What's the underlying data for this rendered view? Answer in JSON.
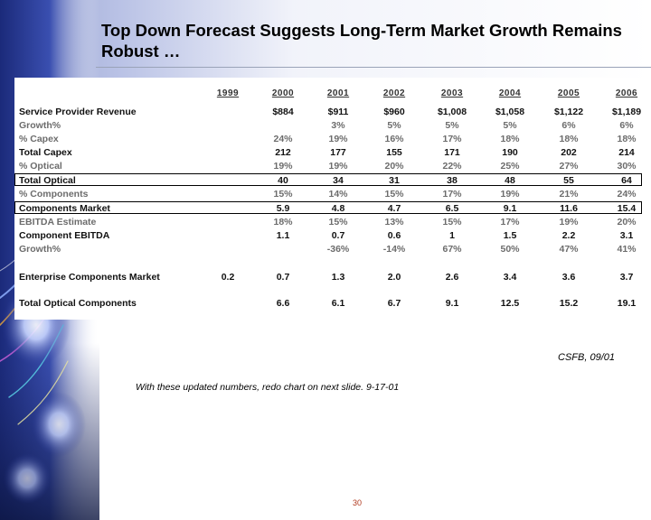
{
  "title": "Top Down Forecast Suggests Long-Term Market Growth Remains Robust …",
  "years": [
    "1999",
    "2000",
    "2001",
    "2002",
    "2003",
    "2004",
    "2005",
    "2006"
  ],
  "rows": [
    {
      "label": "Service Provider Revenue",
      "style": "bold",
      "values": [
        "",
        "$884",
        "$911",
        "$960",
        "$1,008",
        "$1,058",
        "$1,122",
        "$1,189"
      ]
    },
    {
      "label": "Growth%",
      "style": "light",
      "values": [
        "",
        "",
        "3%",
        "5%",
        "5%",
        "5%",
        "6%",
        "6%"
      ]
    },
    {
      "label": "% Capex",
      "style": "light",
      "values": [
        "",
        "24%",
        "19%",
        "16%",
        "17%",
        "18%",
        "18%",
        "18%"
      ]
    },
    {
      "label": "Total Capex",
      "style": "bold",
      "values": [
        "",
        "212",
        "177",
        "155",
        "171",
        "190",
        "202",
        "214"
      ]
    },
    {
      "label": "% Optical",
      "style": "light",
      "values": [
        "",
        "19%",
        "19%",
        "20%",
        "22%",
        "25%",
        "27%",
        "30%"
      ]
    },
    {
      "label": "Total Optical",
      "style": "bold",
      "values": [
        "",
        "40",
        "34",
        "31",
        "38",
        "48",
        "55",
        "64"
      ]
    },
    {
      "label": "% Components",
      "style": "light",
      "values": [
        "",
        "15%",
        "14%",
        "15%",
        "17%",
        "19%",
        "21%",
        "24%"
      ]
    },
    {
      "label": "Components Market",
      "style": "bold",
      "values": [
        "",
        "5.9",
        "4.8",
        "4.7",
        "6.5",
        "9.1",
        "11.6",
        "15.4"
      ]
    },
    {
      "label": "EBITDA Estimate",
      "style": "light",
      "values": [
        "",
        "18%",
        "15%",
        "13%",
        "15%",
        "17%",
        "19%",
        "20%"
      ]
    },
    {
      "label": "Component EBITDA",
      "style": "bold",
      "values": [
        "",
        "1.1",
        "0.7",
        "0.6",
        "1",
        "1.5",
        "2.2",
        "3.1"
      ]
    },
    {
      "label": "Growth%",
      "style": "light",
      "values": [
        "",
        "",
        "-36%",
        "-14%",
        "67%",
        "50%",
        "47%",
        "41%"
      ]
    },
    {
      "label": "Enterprise Components Market",
      "style": "bold",
      "values": [
        "0.2",
        "0.7",
        "1.3",
        "2.0",
        "2.6",
        "3.4",
        "3.6",
        "3.7"
      ]
    },
    {
      "label": "Total Optical Components",
      "style": "bold",
      "values": [
        "",
        "6.6",
        "6.1",
        "6.7",
        "9.1",
        "12.5",
        "15.2",
        "19.1"
      ]
    }
  ],
  "source": "CSFB, 09/01",
  "note": "With these updated numbers, redo chart on next slide. 9-17-01",
  "page_number": "30"
}
